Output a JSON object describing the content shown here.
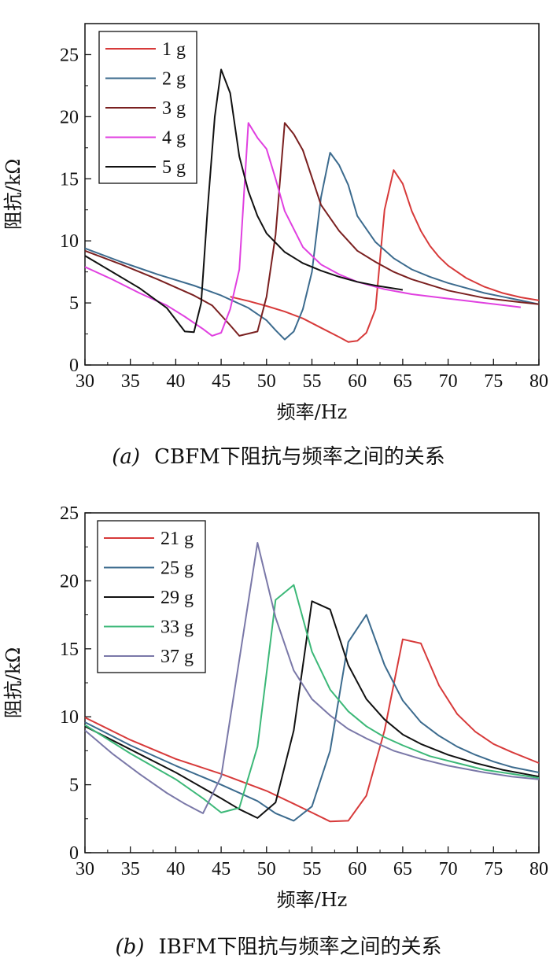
{
  "chart_data": [
    {
      "type": "line",
      "xlabel": "频率/Hz",
      "ylabel": "阻抗/kΩ",
      "xlim": [
        30,
        80
      ],
      "ylim": [
        0,
        27.5
      ],
      "xticks": [
        "30",
        "35",
        "40",
        "45",
        "50",
        "55",
        "60",
        "65",
        "70",
        "75",
        "80"
      ],
      "yticks": [
        "0",
        "5",
        "10",
        "15",
        "20",
        "25"
      ],
      "xtick_values": [
        30,
        35,
        40,
        45,
        50,
        55,
        60,
        65,
        70,
        75,
        80
      ],
      "ytick_values": [
        0,
        5,
        10,
        15,
        20,
        25
      ],
      "legend_position": "top-left",
      "caption_label": "(a)",
      "caption_text": "CBFM下阻抗与频率之间的关系",
      "series": [
        {
          "name": "1 g",
          "color": "#d73a3a",
          "x": [
            46,
            48,
            50,
            52,
            54,
            56,
            58,
            59,
            60,
            61,
            62,
            63,
            64,
            65,
            66,
            67,
            68,
            69,
            70,
            72,
            74,
            76,
            78,
            80
          ],
          "y": [
            5.5,
            5.15,
            4.75,
            4.3,
            3.75,
            3.0,
            2.25,
            1.85,
            1.95,
            2.6,
            4.5,
            12.5,
            15.7,
            14.6,
            12.4,
            10.8,
            9.6,
            8.7,
            8.0,
            7.0,
            6.3,
            5.8,
            5.45,
            5.2
          ]
        },
        {
          "name": "2 g",
          "color": "#3c6b8e",
          "x": [
            30,
            34,
            38,
            42,
            45,
            48,
            50,
            51,
            52,
            53,
            54,
            55,
            56,
            57,
            58,
            59,
            60,
            62,
            64,
            66,
            68,
            70,
            72,
            74,
            76,
            78,
            80
          ],
          "y": [
            9.4,
            8.3,
            7.3,
            6.4,
            5.6,
            4.6,
            3.6,
            2.8,
            2.05,
            2.7,
            4.5,
            7.5,
            13.5,
            17.1,
            16.1,
            14.5,
            12.0,
            9.9,
            8.6,
            7.7,
            7.1,
            6.6,
            6.2,
            5.8,
            5.5,
            5.2,
            4.9
          ]
        },
        {
          "name": "3 g",
          "color": "#7a2020",
          "x": [
            30,
            34,
            38,
            42,
            44,
            46,
            47,
            49,
            50,
            51,
            52,
            53,
            54,
            56,
            58,
            60,
            62,
            64,
            66,
            70,
            74,
            78,
            80
          ],
          "y": [
            9.2,
            8.1,
            6.9,
            5.6,
            4.8,
            3.2,
            2.35,
            2.7,
            5.5,
            10.5,
            19.5,
            18.6,
            17.3,
            12.9,
            10.8,
            9.2,
            8.3,
            7.5,
            6.9,
            6.0,
            5.4,
            5.05,
            4.9
          ]
        },
        {
          "name": "4 g",
          "color": "#e040e0",
          "x": [
            30,
            33,
            36,
            39,
            41,
            43,
            44,
            45,
            46,
            47,
            48,
            49,
            50,
            51,
            52,
            54,
            56,
            58,
            60,
            63,
            66,
            70,
            74,
            78
          ],
          "y": [
            7.9,
            6.9,
            5.8,
            4.8,
            3.9,
            2.9,
            2.35,
            2.6,
            4.5,
            7.7,
            19.5,
            18.3,
            17.4,
            15.0,
            12.4,
            9.5,
            8.1,
            7.3,
            6.7,
            6.1,
            5.7,
            5.35,
            5.0,
            4.65
          ]
        },
        {
          "name": "5 g",
          "color": "#111111",
          "x": [
            30,
            33,
            36,
            39,
            41,
            42,
            42.8,
            43.5,
            44.3,
            45,
            46,
            47,
            48,
            49,
            50,
            52,
            54,
            56,
            58,
            60,
            62,
            65
          ],
          "y": [
            8.8,
            7.5,
            6.2,
            4.6,
            2.7,
            2.65,
            5.0,
            12.5,
            20.0,
            23.8,
            21.9,
            16.8,
            14.0,
            12.0,
            10.6,
            9.1,
            8.2,
            7.6,
            7.1,
            6.7,
            6.4,
            6.05
          ]
        }
      ]
    },
    {
      "type": "line",
      "xlabel": "频率/Hz",
      "ylabel": "阻抗/kΩ",
      "xlim": [
        30,
        80
      ],
      "ylim": [
        0,
        25
      ],
      "xticks": [
        "30",
        "35",
        "40",
        "45",
        "50",
        "55",
        "60",
        "65",
        "70",
        "75",
        "80"
      ],
      "yticks": [
        "0",
        "5",
        "10",
        "15",
        "20",
        "25"
      ],
      "xtick_values": [
        30,
        35,
        40,
        45,
        50,
        55,
        60,
        65,
        70,
        75,
        80
      ],
      "ytick_values": [
        0,
        5,
        10,
        15,
        20,
        25
      ],
      "legend_position": "top-left",
      "caption_label": "(b)",
      "caption_text": "IBFM下阻抗与频率之间的关系",
      "series": [
        {
          "name": "21 g",
          "color": "#d73a3a",
          "x": [
            30,
            35,
            40,
            45,
            50,
            53,
            55,
            57,
            59,
            61,
            63,
            65,
            67,
            69,
            71,
            73,
            75,
            77,
            80
          ],
          "y": [
            9.95,
            8.3,
            6.9,
            5.8,
            4.55,
            3.6,
            2.95,
            2.3,
            2.35,
            4.2,
            9.0,
            15.7,
            15.4,
            12.3,
            10.2,
            8.9,
            8.0,
            7.4,
            6.6
          ]
        },
        {
          "name": "25 g",
          "color": "#3c6b8e",
          "x": [
            30,
            35,
            40,
            45,
            49,
            51,
            53,
            55,
            57,
            59,
            61,
            63,
            65,
            67,
            69,
            71,
            73,
            75,
            77,
            80
          ],
          "y": [
            9.6,
            7.9,
            6.4,
            5.0,
            3.8,
            2.9,
            2.35,
            3.4,
            7.5,
            15.5,
            17.5,
            13.8,
            11.2,
            9.6,
            8.6,
            7.8,
            7.2,
            6.7,
            6.3,
            5.9
          ]
        },
        {
          "name": "29 g",
          "color": "#111111",
          "x": [
            30,
            35,
            40,
            45,
            47,
            49,
            51,
            53,
            55,
            57,
            59,
            61,
            63,
            65,
            67,
            70,
            73,
            76,
            80
          ],
          "y": [
            9.3,
            7.6,
            5.9,
            4.0,
            3.2,
            2.55,
            3.7,
            9.0,
            18.5,
            17.9,
            13.8,
            11.3,
            9.8,
            8.7,
            8.0,
            7.2,
            6.6,
            6.1,
            5.6
          ]
        },
        {
          "name": "33 g",
          "color": "#3cb878",
          "x": [
            30,
            35,
            40,
            43,
            45,
            47,
            49,
            51,
            53,
            55,
            57,
            59,
            61,
            63,
            65,
            68,
            71,
            74,
            77,
            80
          ],
          "y": [
            9.4,
            7.3,
            5.4,
            4.0,
            2.95,
            3.3,
            7.8,
            18.6,
            19.7,
            14.8,
            12.0,
            10.4,
            9.3,
            8.5,
            7.9,
            7.1,
            6.6,
            6.1,
            5.8,
            5.5
          ]
        },
        {
          "name": "37 g",
          "color": "#7a78a8",
          "x": [
            30,
            33,
            36,
            39,
            41,
            43,
            45,
            47,
            49,
            51,
            53,
            55,
            57,
            59,
            61,
            64,
            67,
            70,
            74,
            77,
            80
          ],
          "y": [
            9.0,
            7.3,
            5.8,
            4.4,
            3.6,
            2.9,
            5.6,
            14.2,
            22.8,
            17.3,
            13.4,
            11.3,
            10.1,
            9.1,
            8.4,
            7.5,
            6.9,
            6.4,
            5.9,
            5.6,
            5.4
          ]
        }
      ]
    }
  ]
}
